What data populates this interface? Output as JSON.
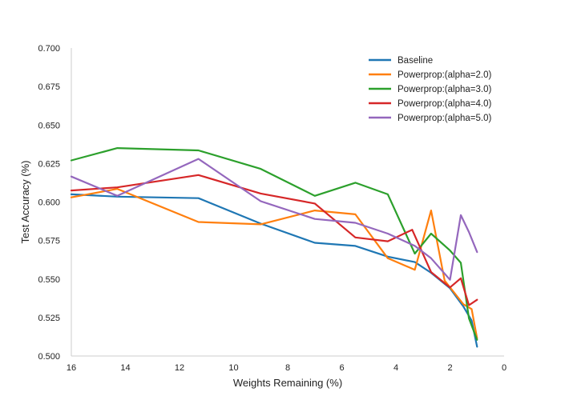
{
  "chart_data": {
    "type": "line",
    "title": "",
    "xlabel": "Weights Remaining (%)",
    "ylabel": "Test Accuracy (%)",
    "xlim": [
      16,
      0
    ],
    "ylim": [
      0.5,
      0.7
    ],
    "x_reversed": true,
    "x_ticks": [
      "16",
      "14",
      "12",
      "10",
      "8",
      "6",
      "4",
      "2",
      "0"
    ],
    "y_ticks": [
      "0.500",
      "0.525",
      "0.550",
      "0.575",
      "0.600",
      "0.625",
      "0.650",
      "0.675",
      "0.700"
    ],
    "grid": false,
    "legend_position": "top-right",
    "series": [
      {
        "name": "Baseline",
        "color": "#1f77b4",
        "points": [
          [
            16.0,
            0.605
          ],
          [
            14.3,
            0.6035
          ],
          [
            11.3,
            0.6025
          ],
          [
            9.0,
            0.586
          ],
          [
            7.0,
            0.5735
          ],
          [
            5.5,
            0.5715
          ],
          [
            4.3,
            0.5645
          ],
          [
            3.3,
            0.561
          ],
          [
            2.7,
            0.554
          ],
          [
            2.0,
            0.544
          ],
          [
            1.5,
            0.532
          ],
          [
            1.2,
            0.523
          ],
          [
            1.0,
            0.506
          ]
        ]
      },
      {
        "name": "Powerprop:(alpha=2.0)",
        "color": "#ff7f0e",
        "points": [
          [
            16.0,
            0.603
          ],
          [
            14.3,
            0.6085
          ],
          [
            11.3,
            0.587
          ],
          [
            9.0,
            0.5855
          ],
          [
            7.0,
            0.5945
          ],
          [
            5.5,
            0.592
          ],
          [
            4.3,
            0.5635
          ],
          [
            3.3,
            0.556
          ],
          [
            2.7,
            0.5945
          ],
          [
            2.2,
            0.549
          ],
          [
            1.5,
            0.5335
          ],
          [
            1.2,
            0.5305
          ],
          [
            1.0,
            0.5115
          ]
        ]
      },
      {
        "name": "Powerprop:(alpha=3.0)",
        "color": "#2ca02c",
        "points": [
          [
            16.0,
            0.627
          ],
          [
            14.3,
            0.635
          ],
          [
            11.3,
            0.6335
          ],
          [
            9.0,
            0.6215
          ],
          [
            7.0,
            0.604
          ],
          [
            5.5,
            0.6125
          ],
          [
            4.3,
            0.605
          ],
          [
            3.3,
            0.5665
          ],
          [
            2.7,
            0.5795
          ],
          [
            2.0,
            0.5685
          ],
          [
            1.6,
            0.5605
          ],
          [
            1.3,
            0.5245
          ],
          [
            1.0,
            0.5105
          ]
        ]
      },
      {
        "name": "Powerprop:(alpha=4.0)",
        "color": "#d62728",
        "points": [
          [
            16.0,
            0.6075
          ],
          [
            14.3,
            0.6095
          ],
          [
            11.3,
            0.6175
          ],
          [
            9.0,
            0.6055
          ],
          [
            7.0,
            0.599
          ],
          [
            5.5,
            0.577
          ],
          [
            4.3,
            0.5745
          ],
          [
            3.4,
            0.582
          ],
          [
            2.7,
            0.5545
          ],
          [
            2.0,
            0.5445
          ],
          [
            1.6,
            0.5505
          ],
          [
            1.3,
            0.533
          ],
          [
            1.0,
            0.5365
          ]
        ]
      },
      {
        "name": "Powerprop:(alpha=5.0)",
        "color": "#9467bd",
        "points": [
          [
            16.0,
            0.6165
          ],
          [
            14.3,
            0.604
          ],
          [
            11.3,
            0.628
          ],
          [
            9.0,
            0.6005
          ],
          [
            7.0,
            0.589
          ],
          [
            5.5,
            0.5865
          ],
          [
            4.3,
            0.5795
          ],
          [
            3.3,
            0.5715
          ],
          [
            2.7,
            0.5635
          ],
          [
            2.0,
            0.5495
          ],
          [
            1.6,
            0.5915
          ],
          [
            1.3,
            0.5805
          ],
          [
            1.0,
            0.5675
          ]
        ]
      }
    ]
  }
}
